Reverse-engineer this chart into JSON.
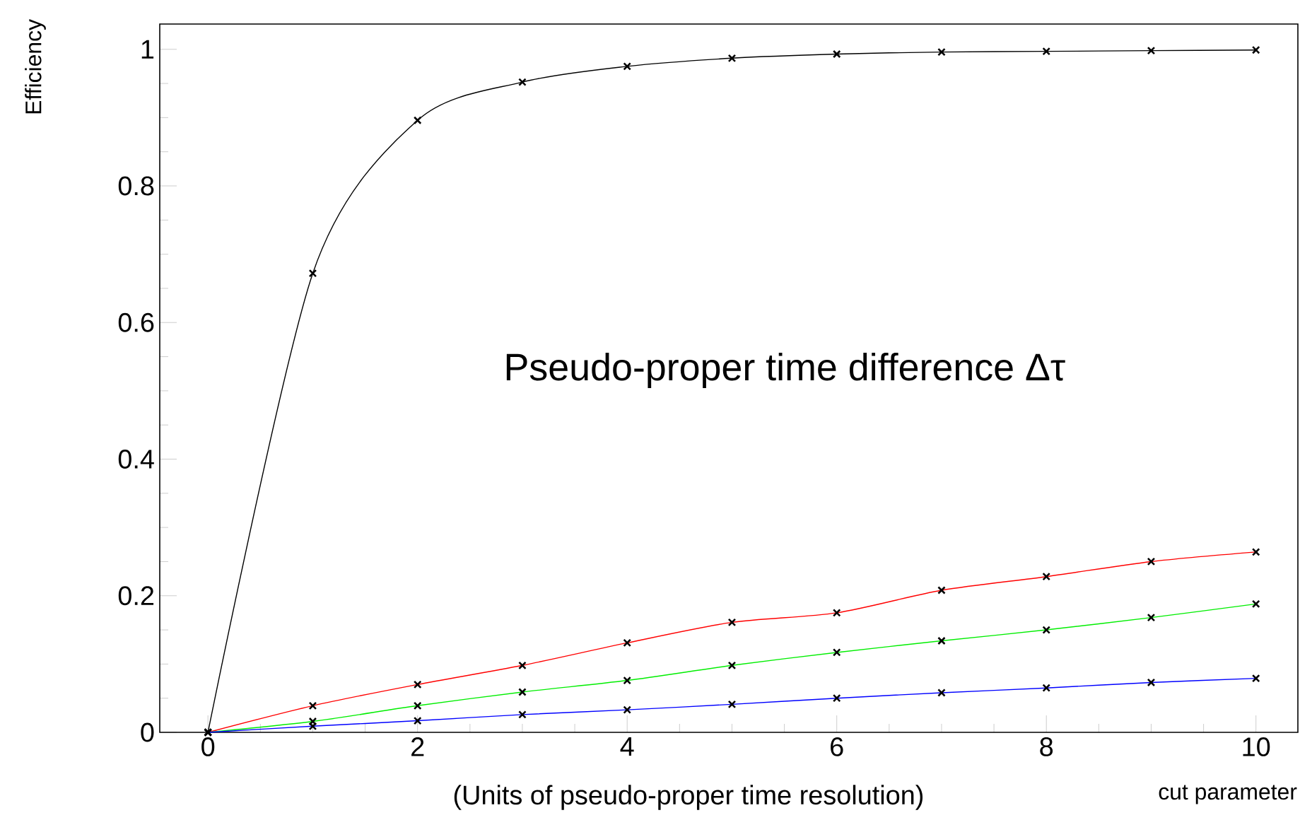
{
  "chart_data": {
    "type": "line",
    "xlabel": "cut parameter",
    "ylabel": "Efficiency",
    "annotations": [
      "Pseudo-proper time difference Δτ",
      "(Units of pseudo-proper time resolution)"
    ],
    "x": [
      0,
      1,
      2,
      3,
      4,
      5,
      6,
      7,
      8,
      9,
      10
    ],
    "series": [
      {
        "color": "#000000",
        "values": [
          0,
          0.672,
          0.896,
          0.952,
          0.975,
          0.987,
          0.993,
          0.996,
          0.997,
          0.998,
          0.999
        ]
      },
      {
        "color": "#ff0000",
        "values": [
          0,
          0.039,
          0.07,
          0.098,
          0.131,
          0.161,
          0.175,
          0.208,
          0.228,
          0.25,
          0.264
        ]
      },
      {
        "color": "#00ee00",
        "values": [
          0,
          0.016,
          0.039,
          0.059,
          0.076,
          0.098,
          0.117,
          0.134,
          0.15,
          0.168,
          0.188
        ]
      },
      {
        "color": "#0000ff",
        "values": [
          0,
          0.009,
          0.017,
          0.026,
          0.033,
          0.041,
          0.05,
          0.058,
          0.065,
          0.073,
          0.079
        ]
      }
    ],
    "xlim": [
      -0.46,
      10.4
    ],
    "ylim": [
      0,
      1.037
    ],
    "xticks": [
      0,
      2,
      4,
      6,
      8,
      10
    ],
    "yticks": [
      0,
      0.2,
      0.4,
      0.6,
      0.8,
      1
    ],
    "marker": "cross",
    "line_style": "solid"
  }
}
